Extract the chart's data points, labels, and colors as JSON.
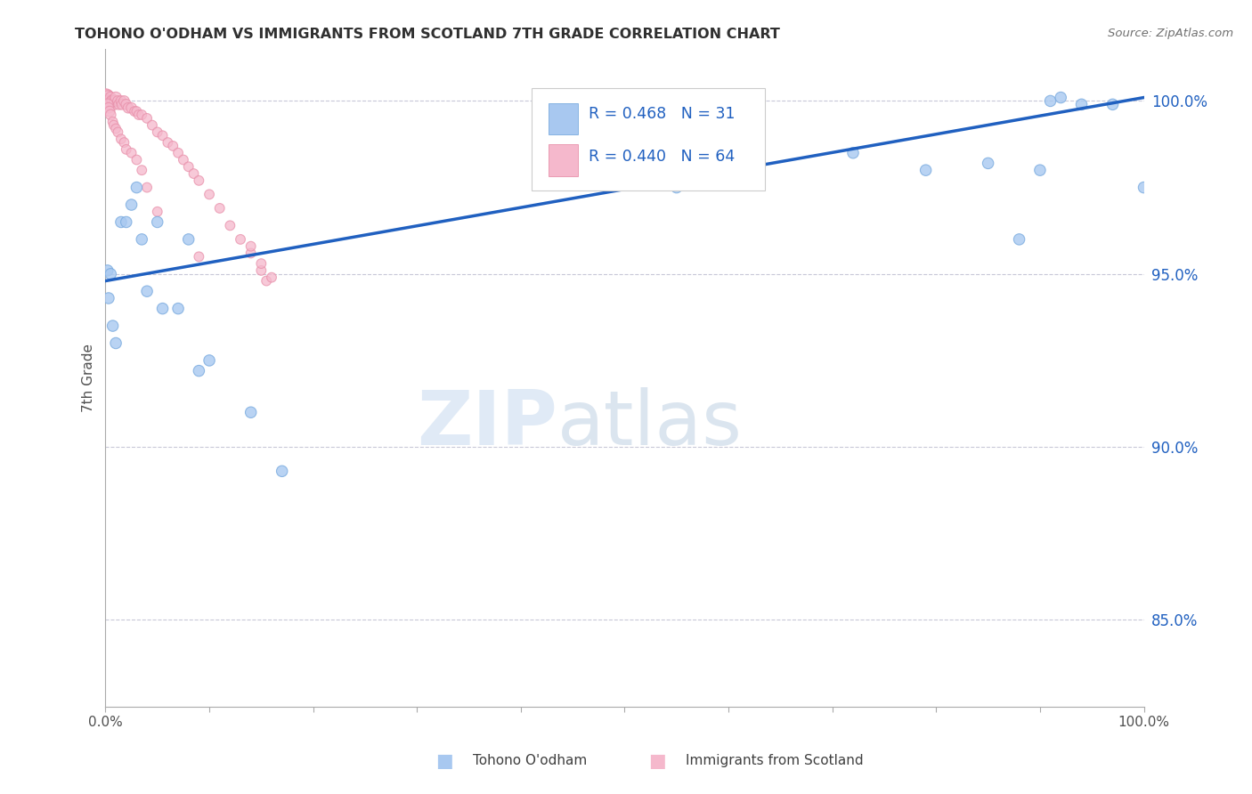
{
  "title": "TOHONO O'ODHAM VS IMMIGRANTS FROM SCOTLAND 7TH GRADE CORRELATION CHART",
  "source": "Source: ZipAtlas.com",
  "ylabel": "7th Grade",
  "xlim": [
    0.0,
    1.0
  ],
  "ylim": [
    0.825,
    1.015
  ],
  "yticks": [
    0.85,
    0.9,
    0.95,
    1.0
  ],
  "ytick_labels": [
    "85.0%",
    "90.0%",
    "95.0%",
    "100.0%"
  ],
  "watermark_zip": "ZIP",
  "watermark_atlas": "atlas",
  "blue_color": "#a8c8f0",
  "blue_edge_color": "#7aabdf",
  "pink_color": "#f5b8cc",
  "pink_edge_color": "#e890aa",
  "line_color": "#2060c0",
  "legend_text_color": "#2060c0",
  "title_color": "#303030",
  "grid_color": "#c8c8d8",
  "blue_scatter_x": [
    0.002,
    0.003,
    0.005,
    0.007,
    0.01,
    0.015,
    0.02,
    0.025,
    0.03,
    0.035,
    0.04,
    0.05,
    0.055,
    0.07,
    0.08,
    0.09,
    0.1,
    0.14,
    0.17,
    0.55,
    0.62,
    0.72,
    0.79,
    0.85,
    0.88,
    0.9,
    0.91,
    0.92,
    0.94,
    0.97,
    1.0
  ],
  "blue_scatter_y": [
    0.951,
    0.943,
    0.95,
    0.935,
    0.93,
    0.965,
    0.965,
    0.97,
    0.975,
    0.96,
    0.945,
    0.965,
    0.94,
    0.94,
    0.96,
    0.922,
    0.925,
    0.91,
    0.893,
    0.975,
    0.978,
    0.985,
    0.98,
    0.982,
    0.96,
    0.98,
    1.0,
    1.001,
    0.999,
    0.999,
    0.975
  ],
  "blue_marker_sizes": [
    80,
    80,
    80,
    80,
    80,
    80,
    80,
    80,
    80,
    80,
    80,
    80,
    80,
    80,
    80,
    80,
    80,
    80,
    80,
    80,
    80,
    80,
    80,
    80,
    80,
    80,
    80,
    80,
    80,
    80,
    80
  ],
  "pink_scatter_x": [
    0.0,
    0.0,
    0.001,
    0.001,
    0.002,
    0.002,
    0.003,
    0.004,
    0.005,
    0.006,
    0.007,
    0.008,
    0.009,
    0.01,
    0.012,
    0.013,
    0.015,
    0.016,
    0.018,
    0.02,
    0.022,
    0.025,
    0.028,
    0.03,
    0.032,
    0.035,
    0.04,
    0.045,
    0.05,
    0.055,
    0.06,
    0.065,
    0.07,
    0.075,
    0.08,
    0.085,
    0.09,
    0.1,
    0.11,
    0.12,
    0.13,
    0.14,
    0.15,
    0.155,
    0.14,
    0.15,
    0.16,
    0.002,
    0.003,
    0.004,
    0.005,
    0.007,
    0.008,
    0.01,
    0.012,
    0.015,
    0.018,
    0.02,
    0.025,
    0.03,
    0.035,
    0.04,
    0.05,
    0.09
  ],
  "pink_scatter_y": [
    1.001,
    1.0,
    1.001,
    1.0,
    1.001,
    0.999,
    1.0,
    1.0,
    1.001,
    1.0,
    1.0,
    0.999,
    1.0,
    1.001,
    1.0,
    0.999,
    1.0,
    0.999,
    1.0,
    0.999,
    0.998,
    0.998,
    0.997,
    0.997,
    0.996,
    0.996,
    0.995,
    0.993,
    0.991,
    0.99,
    0.988,
    0.987,
    0.985,
    0.983,
    0.981,
    0.979,
    0.977,
    0.973,
    0.969,
    0.964,
    0.96,
    0.956,
    0.951,
    0.948,
    0.958,
    0.953,
    0.949,
    0.999,
    0.998,
    0.997,
    0.996,
    0.994,
    0.993,
    0.992,
    0.991,
    0.989,
    0.988,
    0.986,
    0.985,
    0.983,
    0.98,
    0.975,
    0.968,
    0.955
  ],
  "pink_marker_sizes": [
    200,
    180,
    160,
    140,
    120,
    100,
    100,
    90,
    80,
    80,
    80,
    80,
    80,
    80,
    70,
    70,
    70,
    70,
    70,
    70,
    70,
    70,
    60,
    60,
    60,
    60,
    60,
    60,
    60,
    60,
    60,
    60,
    60,
    60,
    60,
    60,
    60,
    60,
    60,
    60,
    60,
    60,
    60,
    60,
    60,
    60,
    60,
    80,
    70,
    70,
    70,
    60,
    60,
    60,
    60,
    60,
    60,
    60,
    60,
    60,
    60,
    60,
    60,
    60
  ],
  "trend_line_x": [
    0.0,
    1.0
  ],
  "trend_line_y": [
    0.948,
    1.001
  ],
  "legend_blue_label": "Tohono O'odham",
  "legend_pink_label": "Immigrants from Scotland"
}
